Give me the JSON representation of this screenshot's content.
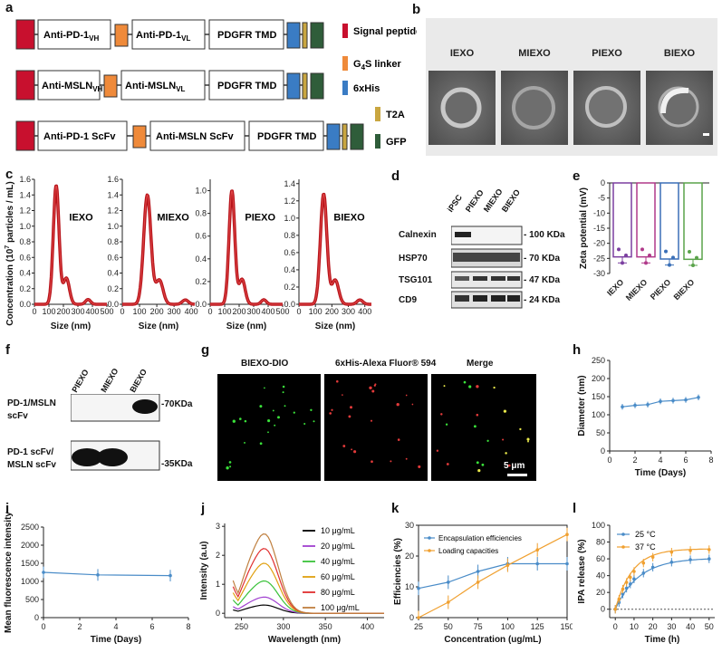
{
  "panels": {
    "a": "a",
    "b": "b",
    "c": "c",
    "d": "d",
    "e": "e",
    "f": "f",
    "g": "g",
    "h": "h",
    "i": "i",
    "j": "j",
    "k": "k",
    "l": "l"
  },
  "construct_a": {
    "row1": [
      "Anti-PD-1",
      "VH",
      "Anti-PD-1",
      "VL",
      "PDGFR TMD"
    ],
    "row2": [
      "Anti-MSLN",
      "VH",
      "Anti-MSLN",
      "VL",
      "PDGFR TMD"
    ],
    "row3": [
      "Anti-PD-1 ScFv",
      "Anti-MSLN ScFv",
      "PDGFR TMD"
    ],
    "legend": [
      {
        "text": "Signal peptide",
        "color": "#c8102e"
      },
      {
        "text": "G",
        "sub": "4",
        "rest": "S linker",
        "color": "#ef8a3a"
      },
      {
        "text": "6xHis",
        "color": "#3a7cc4"
      },
      {
        "text": "T2A",
        "color": "#c9a640"
      },
      {
        "text": "GFP",
        "color": "#2f5d3a"
      }
    ]
  },
  "tem_b": {
    "labels": [
      "IEXO",
      "MIEXO",
      "PIEXO",
      "BIEXO"
    ]
  },
  "nta_c": {
    "ylabel": "Concentration (10",
    "ylabel_sup": "7",
    "ylabel_rest": " particles / mL)",
    "xlabel": "Size (nm)",
    "charts": [
      {
        "name": "IEXO",
        "yticks": [
          "0.0",
          "0.2",
          "0.4",
          "0.6",
          "0.8",
          "1.0",
          "1.2",
          "1.4",
          "1.6"
        ],
        "ymax": 1.6,
        "xticks": [
          "0",
          "100",
          "200",
          "300",
          "400",
          "500"
        ],
        "xmax": 500,
        "peak": 150,
        "peakval": 1.52,
        "width": 28
      },
      {
        "name": "MIEXO",
        "yticks": [
          "0.0",
          "0.2",
          "0.4",
          "0.6",
          "0.8",
          "1.0",
          "1.2",
          "1.4",
          "1.6"
        ],
        "ymax": 1.6,
        "xticks": [
          "0",
          "100",
          "200",
          "300",
          "400"
        ],
        "xmax": 420,
        "peak": 145,
        "peakval": 1.4,
        "width": 30
      },
      {
        "name": "PIEXO",
        "yticks": [
          "0.0",
          "0.2",
          "0.4",
          "0.6",
          "0.8",
          "1.0"
        ],
        "ymax": 1.1,
        "xticks": [
          "0",
          "100",
          "200",
          "300",
          "400",
          "500"
        ],
        "xmax": 500,
        "peak": 150,
        "peakval": 1.0,
        "width": 28
      },
      {
        "name": "BIEXO",
        "yticks": [
          "0.0",
          "0.2",
          "0.4",
          "0.6",
          "0.8",
          "1.0",
          "1.2",
          "1.4"
        ],
        "ymax": 1.45,
        "xticks": [
          "0",
          "100",
          "200",
          "300",
          "400"
        ],
        "xmax": 440,
        "peak": 150,
        "peakval": 1.28,
        "width": 28
      }
    ]
  },
  "wb_d": {
    "lanes": [
      "iPSC",
      "PIEXO",
      "MIEXO",
      "BIEXO"
    ],
    "rows": [
      {
        "protein": "Calnexin",
        "mw": "- 100 KDa"
      },
      {
        "protein": "HSP70",
        "mw": "- 70 KDa"
      },
      {
        "protein": "TSG101",
        "mw": "- 47 KDa"
      },
      {
        "protein": "CD9",
        "mw": "- 24 KDa"
      }
    ]
  },
  "zeta_e": {
    "ylabel": "Zeta potential (mV)",
    "yticks": [
      "0",
      "-5",
      "-10",
      "-15",
      "-20",
      "-25",
      "-30"
    ],
    "categories": [
      "IEXO",
      "MIEXO",
      "PIEXO",
      "BIEXO"
    ],
    "values": [
      -24.5,
      -24.5,
      -25.2,
      -25.3
    ],
    "colors": [
      "#7b3fa0",
      "#b0398a",
      "#3a6fb7",
      "#5aa34a"
    ]
  },
  "wb_f": {
    "lanes": [
      "PIEXO",
      "MIEXO",
      "BIEXO"
    ],
    "rows": [
      {
        "protein": "PD-1/MSLN",
        "protein2": "scFv",
        "mw": "-70KDa"
      },
      {
        "protein": "PD-1 scFv/",
        "protein2": "MSLN scFv",
        "mw": "-35KDa"
      }
    ]
  },
  "fluor_g": {
    "titles": [
      "BIEXO-DIO",
      "6xHis-Alexa Fluor® 594",
      "Merge"
    ],
    "scalebar": "5 μm"
  },
  "chart_h": {
    "ylabel": "Diameter (nm)",
    "xlabel": "Time (Days)",
    "xticks": [
      "0",
      "2",
      "4",
      "6",
      "8"
    ],
    "yticks": [
      "0",
      "50",
      "100",
      "150",
      "200",
      "250"
    ],
    "x": [
      1,
      2,
      3,
      4,
      5,
      6,
      7
    ],
    "y": [
      122,
      126,
      128,
      137,
      139,
      141,
      148
    ]
  },
  "chart_i": {
    "ylabel": "Mean fluorescence intensity",
    "xlabel": "Time (Days)",
    "xticks": [
      "0",
      "2",
      "4",
      "6",
      "8"
    ],
    "yticks": [
      "0",
      "500",
      "1000",
      "1500",
      "2000",
      "2500"
    ],
    "x": [
      0,
      3,
      7
    ],
    "y": [
      1250,
      1180,
      1160
    ]
  },
  "chart_j": {
    "ylabel": "Intensity (a.u)",
    "xlabel": "Wavelength (nm)",
    "xticks": [
      "250",
      "300",
      "350",
      "400"
    ],
    "yticks": [
      "0",
      "1",
      "2",
      "3"
    ],
    "series": [
      {
        "name": "10 μg/mL",
        "color": "#000000",
        "peak": 0.28
      },
      {
        "name": "20 μg/mL",
        "color": "#a040d0",
        "peak": 0.55
      },
      {
        "name": "40 μg/mL",
        "color": "#3ac23a",
        "peak": 1.1
      },
      {
        "name": "60 μg/mL",
        "color": "#e0a010",
        "peak": 1.7
      },
      {
        "name": "80 μg/mL",
        "color": "#e03030",
        "peak": 2.2
      },
      {
        "name": "100 μg/mL",
        "color": "#c08040",
        "peak": 2.7
      }
    ]
  },
  "chart_k": {
    "ylabel": "Efficiencies (%)",
    "xlabel": "Concentration (ug/mL)",
    "xticks": [
      "25",
      "50",
      "75",
      "100",
      "125",
      "150"
    ],
    "yticks": [
      "0",
      "10",
      "20",
      "30"
    ],
    "x": [
      25,
      50,
      75,
      100,
      125,
      150
    ],
    "series": [
      {
        "name": "Encapsulation efficiencies",
        "color": "#4a8cc8",
        "values": [
          9.5,
          11.5,
          15,
          17.5,
          17.5,
          17.5
        ]
      },
      {
        "name": "Loading capacities",
        "color": "#f0a030",
        "values": [
          -0.5,
          5,
          11.5,
          17,
          22,
          27
        ]
      }
    ]
  },
  "chart_l": {
    "ylabel": "IPA release (%)",
    "xlabel": "Time (h)",
    "xticks": [
      "0",
      "10",
      "20",
      "30",
      "40",
      "50"
    ],
    "yticks": [
      "0",
      "20",
      "40",
      "60",
      "80",
      "100"
    ],
    "x": [
      0,
      2,
      4,
      6,
      8,
      10,
      15,
      20,
      30,
      40,
      50
    ],
    "series": [
      {
        "name": "25 °C",
        "color": "#4a8cc8",
        "values": [
          0,
          8,
          18,
          25,
          30,
          36,
          43,
          50,
          56,
          59,
          60
        ]
      },
      {
        "name": "37 °C",
        "color": "#f0a030",
        "values": [
          0,
          12,
          24,
          32,
          38,
          45,
          55,
          62,
          68,
          70,
          71
        ]
      }
    ]
  }
}
